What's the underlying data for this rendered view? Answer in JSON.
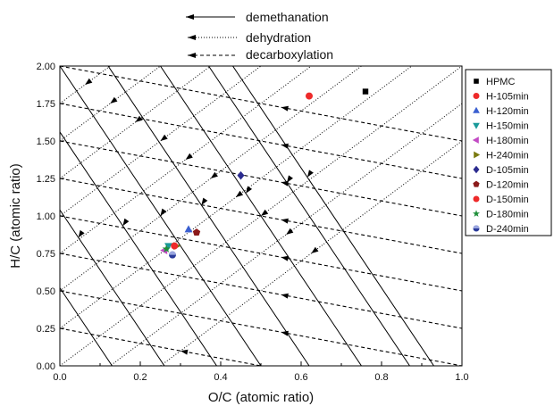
{
  "chart_data": {
    "type": "scatter",
    "title": "",
    "xlabel": "O/C (atomic ratio)",
    "ylabel": "H/C (atomic ratio)",
    "xlim": [
      0.0,
      1.0
    ],
    "ylim": [
      0.0,
      2.0
    ],
    "x_ticks": [
      "0.0",
      "0.2",
      "0.4",
      "0.6",
      "0.8",
      "1.0"
    ],
    "y_ticks": [
      "0.00",
      "0.25",
      "0.50",
      "0.75",
      "1.00",
      "1.25",
      "1.50",
      "1.75",
      "2.00"
    ],
    "grid": false,
    "legend_position": "right",
    "reaction_legend": [
      {
        "label": "demethanation",
        "style": "solid"
      },
      {
        "label": "dehydration",
        "style": "dotted"
      },
      {
        "label": "decarboxylation",
        "style": "dashed"
      }
    ],
    "reaction_lines": {
      "demethanation_x_intercepts": [
        0.13,
        0.26,
        0.39,
        0.5,
        0.62,
        0.75,
        0.87,
        0.93
      ],
      "dehydration_y_intercepts": [
        -0.5,
        -0.25,
        0.0,
        0.25,
        0.5,
        0.75,
        1.0,
        1.25,
        1.5,
        1.75,
        2.0
      ],
      "decarboxylation_y_intercepts": [
        0.25,
        0.5,
        0.75,
        1.0,
        1.25,
        1.5,
        1.75,
        2.0
      ]
    },
    "series": [
      {
        "name": "HPMC",
        "marker": "square",
        "color": "#000000",
        "points": [
          [
            0.76,
            1.83
          ]
        ]
      },
      {
        "name": "H-105min",
        "marker": "circle",
        "color": "#ee2a2a",
        "points": [
          [
            0.62,
            1.8
          ]
        ]
      },
      {
        "name": "H-120min",
        "marker": "triangle-up",
        "color": "#3a5fd0",
        "points": [
          [
            0.32,
            0.91
          ]
        ]
      },
      {
        "name": "H-150min",
        "marker": "triangle-down",
        "color": "#1a9a9a",
        "points": [
          [
            0.27,
            0.8
          ]
        ]
      },
      {
        "name": "H-180min",
        "marker": "triangle-left",
        "color": "#c24bc4",
        "points": [
          [
            0.26,
            0.77
          ]
        ]
      },
      {
        "name": "H-240min",
        "marker": "triangle-right",
        "color": "#7a7a10",
        "points": [
          [
            0.29,
            0.8
          ]
        ]
      },
      {
        "name": "D-105min",
        "marker": "diamond",
        "color": "#2b2b8f",
        "points": [
          [
            0.45,
            1.27
          ]
        ]
      },
      {
        "name": "D-120min",
        "marker": "pentagon",
        "color": "#8b1a1a",
        "points": [
          [
            0.34,
            0.89
          ]
        ]
      },
      {
        "name": "D-150min",
        "marker": "circle",
        "color": "#ee2a2a",
        "points": [
          [
            0.285,
            0.8
          ]
        ]
      },
      {
        "name": "D-180min",
        "marker": "star",
        "color": "#1f8f3a",
        "points": [
          [
            0.265,
            0.78
          ]
        ]
      },
      {
        "name": "D-240min",
        "marker": "half-circle",
        "color": "#2a3a9a",
        "points": [
          [
            0.28,
            0.74
          ]
        ]
      }
    ]
  }
}
